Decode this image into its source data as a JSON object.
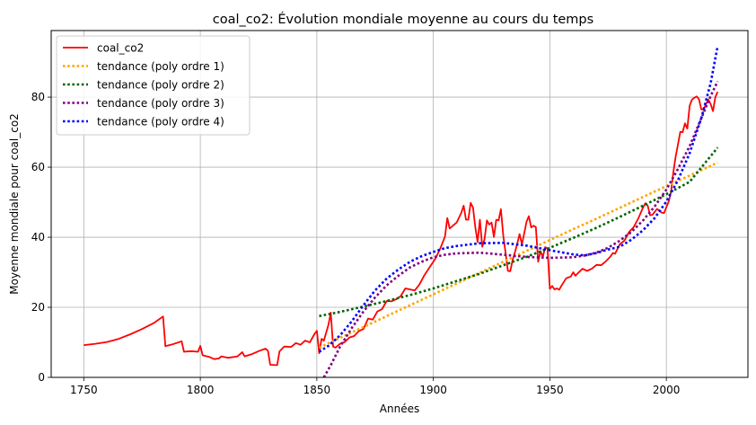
{
  "chart_data": {
    "type": "line",
    "title": "coal_co2: Évolution mondiale moyenne au cours du temps",
    "xlabel": "Années",
    "ylabel": "Moyenne mondiale pour coal_co2",
    "xlim": [
      1736,
      2035
    ],
    "ylim": [
      0,
      99
    ],
    "xticks": [
      1750,
      1800,
      1850,
      1900,
      1950,
      2000
    ],
    "yticks": [
      0,
      20,
      40,
      60,
      80
    ],
    "grid": true,
    "legend_position": "top-left",
    "series": [
      {
        "name": "coal_co2",
        "color": "#ff0000",
        "style": "solid",
        "points": [
          [
            1750,
            9.2
          ],
          [
            1755,
            9.6
          ],
          [
            1760,
            10.1
          ],
          [
            1765,
            11.0
          ],
          [
            1770,
            12.3
          ],
          [
            1775,
            13.8
          ],
          [
            1780,
            15.5
          ],
          [
            1784,
            17.4
          ],
          [
            1785,
            8.9
          ],
          [
            1788,
            9.4
          ],
          [
            1792,
            10.3
          ],
          [
            1793,
            7.3
          ],
          [
            1796,
            7.5
          ],
          [
            1799,
            7.3
          ],
          [
            1800,
            9.0
          ],
          [
            1801,
            6.3
          ],
          [
            1804,
            5.8
          ],
          [
            1806,
            5.2
          ],
          [
            1808,
            5.4
          ],
          [
            1809,
            6.0
          ],
          [
            1812,
            5.6
          ],
          [
            1816,
            6.0
          ],
          [
            1818,
            7.2
          ],
          [
            1819,
            6.0
          ],
          [
            1822,
            6.6
          ],
          [
            1825,
            7.5
          ],
          [
            1828,
            8.2
          ],
          [
            1829,
            7.6
          ],
          [
            1830,
            3.6
          ],
          [
            1833,
            3.5
          ],
          [
            1834,
            7.4
          ],
          [
            1836,
            8.8
          ],
          [
            1839,
            8.7
          ],
          [
            1841,
            9.8
          ],
          [
            1843,
            9.3
          ],
          [
            1845,
            10.5
          ],
          [
            1847,
            10.0
          ],
          [
            1849,
            12.4
          ],
          [
            1850,
            13.3
          ],
          [
            1851,
            6.9
          ],
          [
            1852,
            11.0
          ],
          [
            1853,
            10.5
          ],
          [
            1855,
            15.0
          ],
          [
            1856,
            18.5
          ],
          [
            1857,
            8.8
          ],
          [
            1858,
            8.5
          ],
          [
            1860,
            9.6
          ],
          [
            1862,
            10.1
          ],
          [
            1864,
            11.4
          ],
          [
            1866,
            11.8
          ],
          [
            1868,
            13.2
          ],
          [
            1870,
            13.8
          ],
          [
            1872,
            16.8
          ],
          [
            1874,
            16.5
          ],
          [
            1876,
            18.8
          ],
          [
            1878,
            19.5
          ],
          [
            1880,
            21.8
          ],
          [
            1882,
            21.7
          ],
          [
            1884,
            22.3
          ],
          [
            1886,
            23.2
          ],
          [
            1888,
            25.4
          ],
          [
            1890,
            25.1
          ],
          [
            1892,
            24.8
          ],
          [
            1894,
            26.5
          ],
          [
            1896,
            29.0
          ],
          [
            1898,
            31.0
          ],
          [
            1900,
            33.0
          ],
          [
            1901,
            34.0
          ],
          [
            1903,
            36.8
          ],
          [
            1905,
            40.2
          ],
          [
            1906,
            45.5
          ],
          [
            1907,
            42.5
          ],
          [
            1908,
            43.1
          ],
          [
            1910,
            44.2
          ],
          [
            1912,
            47.0
          ],
          [
            1913,
            49.0
          ],
          [
            1914,
            45.0
          ],
          [
            1915,
            45.0
          ],
          [
            1916,
            49.8
          ],
          [
            1917,
            48.5
          ],
          [
            1918,
            43.0
          ],
          [
            1919,
            38.6
          ],
          [
            1920,
            45.0
          ],
          [
            1921,
            37.3
          ],
          [
            1922,
            39.5
          ],
          [
            1923,
            44.8
          ],
          [
            1924,
            43.6
          ],
          [
            1925,
            44.2
          ],
          [
            1926,
            40.1
          ],
          [
            1927,
            45.0
          ],
          [
            1928,
            44.8
          ],
          [
            1929,
            48.0
          ],
          [
            1930,
            40.5
          ],
          [
            1931,
            35.5
          ],
          [
            1932,
            30.4
          ],
          [
            1933,
            30.3
          ],
          [
            1934,
            33.5
          ],
          [
            1935,
            35.7
          ],
          [
            1936,
            38.2
          ],
          [
            1937,
            40.9
          ],
          [
            1938,
            38.0
          ],
          [
            1939,
            41.0
          ],
          [
            1940,
            44.4
          ],
          [
            1941,
            46.0
          ],
          [
            1942,
            42.8
          ],
          [
            1943,
            43.3
          ],
          [
            1944,
            42.9
          ],
          [
            1945,
            33.0
          ],
          [
            1946,
            36.0
          ],
          [
            1947,
            34.4
          ],
          [
            1948,
            37.2
          ],
          [
            1949,
            36.8
          ],
          [
            1950,
            25.3
          ],
          [
            1951,
            26.1
          ],
          [
            1952,
            25.1
          ],
          [
            1953,
            25.4
          ],
          [
            1954,
            25.0
          ],
          [
            1955,
            26.2
          ],
          [
            1957,
            28.3
          ],
          [
            1959,
            28.8
          ],
          [
            1960,
            30.0
          ],
          [
            1961,
            29.0
          ],
          [
            1962,
            29.7
          ],
          [
            1964,
            31.0
          ],
          [
            1966,
            30.4
          ],
          [
            1968,
            31.0
          ],
          [
            1970,
            32.1
          ],
          [
            1972,
            32.0
          ],
          [
            1974,
            33.1
          ],
          [
            1976,
            34.5
          ],
          [
            1977,
            35.5
          ],
          [
            1978,
            35.3
          ],
          [
            1980,
            38.0
          ],
          [
            1982,
            39.0
          ],
          [
            1984,
            41.5
          ],
          [
            1986,
            42.9
          ],
          [
            1988,
            45.4
          ],
          [
            1990,
            48.5
          ],
          [
            1991,
            49.7
          ],
          [
            1992,
            49.0
          ],
          [
            1993,
            46.3
          ],
          [
            1994,
            46.4
          ],
          [
            1996,
            48.1
          ],
          [
            1998,
            47.0
          ],
          [
            1999,
            46.9
          ],
          [
            2000,
            48.6
          ],
          [
            2001,
            50.2
          ],
          [
            2002,
            53.0
          ],
          [
            2003,
            58.5
          ],
          [
            2004,
            63.0
          ],
          [
            2005,
            66.5
          ],
          [
            2006,
            70.1
          ],
          [
            2007,
            70.0
          ],
          [
            2008,
            72.5
          ],
          [
            2009,
            71.0
          ],
          [
            2010,
            77.5
          ],
          [
            2011,
            79.3
          ],
          [
            2012,
            79.8
          ],
          [
            2013,
            80.2
          ],
          [
            2014,
            79.4
          ],
          [
            2015,
            76.5
          ],
          [
            2016,
            76.5
          ],
          [
            2017,
            78.0
          ],
          [
            2018,
            79.3
          ],
          [
            2019,
            78.0
          ],
          [
            2020,
            76.0
          ],
          [
            2021,
            80.0
          ],
          [
            2022,
            81.5
          ]
        ]
      },
      {
        "name": "tendance (poly ordre 1)",
        "color": "#ffa500",
        "style": "dotted",
        "points": [
          [
            1851,
            8.5
          ],
          [
            1860,
            11.3
          ],
          [
            1870,
            14.4
          ],
          [
            1880,
            17.5
          ],
          [
            1890,
            20.6
          ],
          [
            1900,
            23.7
          ],
          [
            1910,
            26.8
          ],
          [
            1920,
            29.9
          ],
          [
            1930,
            33.0
          ],
          [
            1940,
            36.1
          ],
          [
            1950,
            39.2
          ],
          [
            1960,
            42.3
          ],
          [
            1970,
            45.3
          ],
          [
            1980,
            48.4
          ],
          [
            1990,
            51.5
          ],
          [
            2000,
            54.6
          ],
          [
            2010,
            57.6
          ],
          [
            2022,
            61.3
          ]
        ]
      },
      {
        "name": "tendance (poly ordre 2)",
        "color": "#006400",
        "style": "dotted",
        "points": [
          [
            1851,
            17.5
          ],
          [
            1860,
            18.7
          ],
          [
            1870,
            20.2
          ],
          [
            1880,
            21.8
          ],
          [
            1890,
            23.5
          ],
          [
            1900,
            25.4
          ],
          [
            1910,
            27.5
          ],
          [
            1920,
            29.6
          ],
          [
            1930,
            32.0
          ],
          [
            1940,
            34.4
          ],
          [
            1950,
            37.0
          ],
          [
            1960,
            39.8
          ],
          [
            1970,
            42.7
          ],
          [
            1980,
            45.8
          ],
          [
            1990,
            49.0
          ],
          [
            2000,
            52.3
          ],
          [
            2010,
            55.8
          ],
          [
            2022,
            65.6
          ]
        ]
      },
      {
        "name": "tendance (poly ordre 3)",
        "color": "#800080",
        "style": "dotted",
        "points": [
          [
            1853,
            0.0
          ],
          [
            1856,
            3.5
          ],
          [
            1860,
            8.8
          ],
          [
            1865,
            14.1
          ],
          [
            1870,
            18.8
          ],
          [
            1875,
            22.8
          ],
          [
            1880,
            26.3
          ],
          [
            1885,
            29.0
          ],
          [
            1890,
            31.4
          ],
          [
            1895,
            33.0
          ],
          [
            1900,
            34.3
          ],
          [
            1905,
            35.0
          ],
          [
            1910,
            35.4
          ],
          [
            1920,
            35.6
          ],
          [
            1930,
            35.0
          ],
          [
            1940,
            34.4
          ],
          [
            1950,
            34.1
          ],
          [
            1960,
            34.3
          ],
          [
            1965,
            34.8
          ],
          [
            1970,
            35.6
          ],
          [
            1975,
            37.0
          ],
          [
            1980,
            39.0
          ],
          [
            1985,
            41.5
          ],
          [
            1990,
            44.8
          ],
          [
            1995,
            48.8
          ],
          [
            2000,
            53.6
          ],
          [
            2005,
            59.5
          ],
          [
            2010,
            66.0
          ],
          [
            2015,
            74.0
          ],
          [
            2019,
            80.3
          ],
          [
            2022,
            84.5
          ]
        ]
      },
      {
        "name": "tendance (poly ordre 4)",
        "color": "#0000ff",
        "style": "dotted",
        "points": [
          [
            1851,
            7.3
          ],
          [
            1855,
            9.0
          ],
          [
            1860,
            12.0
          ],
          [
            1865,
            16.0
          ],
          [
            1870,
            20.6
          ],
          [
            1875,
            24.8
          ],
          [
            1880,
            28.2
          ],
          [
            1885,
            30.8
          ],
          [
            1890,
            33.0
          ],
          [
            1895,
            34.6
          ],
          [
            1900,
            35.8
          ],
          [
            1905,
            36.9
          ],
          [
            1910,
            37.5
          ],
          [
            1920,
            38.3
          ],
          [
            1930,
            38.4
          ],
          [
            1940,
            37.6
          ],
          [
            1950,
            36.3
          ],
          [
            1960,
            35.1
          ],
          [
            1965,
            34.8
          ],
          [
            1970,
            35.5
          ],
          [
            1975,
            36.5
          ],
          [
            1980,
            37.3
          ],
          [
            1985,
            39.3
          ],
          [
            1990,
            42.0
          ],
          [
            1995,
            45.5
          ],
          [
            2000,
            50.2
          ],
          [
            2005,
            56.3
          ],
          [
            2010,
            64.0
          ],
          [
            2015,
            74.0
          ],
          [
            2019,
            84.0
          ],
          [
            2022,
            94.6
          ]
        ]
      }
    ]
  }
}
